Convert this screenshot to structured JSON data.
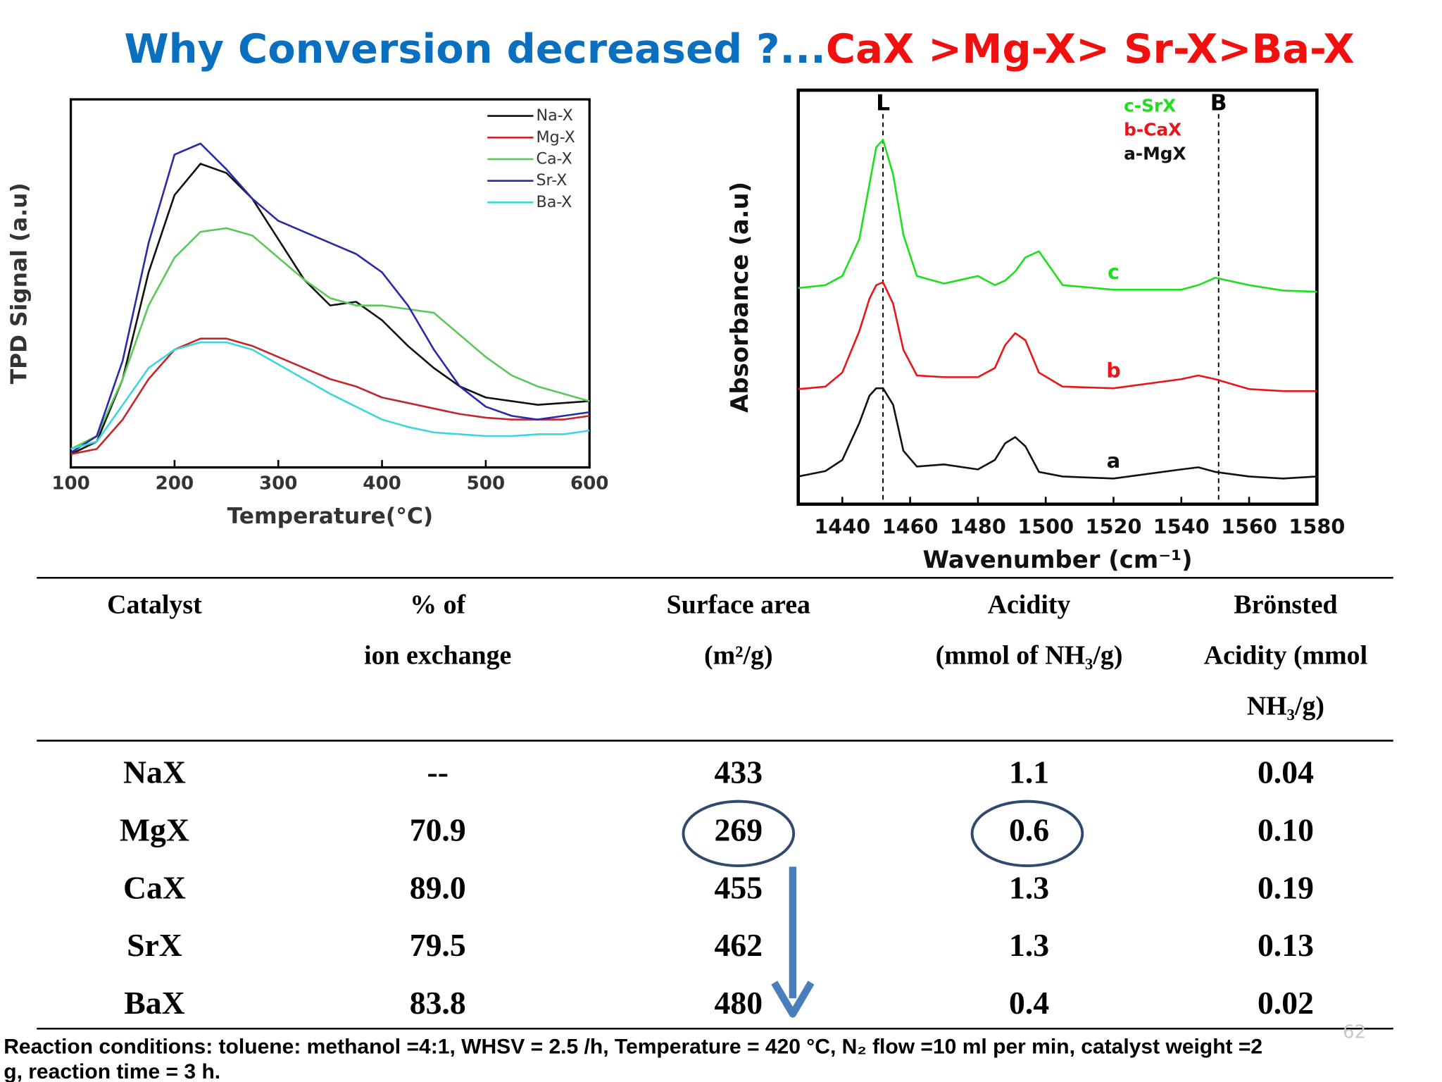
{
  "title": {
    "parts": [
      {
        "text": "Why Conversion decreased ?...",
        "color": "#0b6fbf"
      },
      {
        "text": "CaX >Mg-X> Sr-X>Ba-X",
        "color": "#f01010"
      }
    ]
  },
  "chart_data": [
    {
      "type": "line",
      "xlabel": "Temperature(°C)",
      "ylabel": "TPD Signal (a.u)",
      "xlim": [
        100,
        600
      ],
      "xticks": [
        100,
        200,
        300,
        400,
        500,
        600
      ],
      "ylim": [
        0,
        100
      ],
      "legend": "upper right",
      "legend_marker": true,
      "x": [
        100,
        125,
        150,
        175,
        200,
        225,
        250,
        275,
        300,
        325,
        350,
        375,
        400,
        425,
        450,
        475,
        500,
        525,
        550,
        575,
        600
      ],
      "series": [
        {
          "name": "Na-X",
          "color": "#111111",
          "values": [
            3.6,
            7,
            24,
            53,
            74,
            82.5,
            80,
            73,
            62,
            51,
            44,
            45,
            40,
            33,
            27,
            22,
            19,
            18,
            17,
            17.5,
            18
          ]
        },
        {
          "name": "Mg-X",
          "color": "#c0282d",
          "values": [
            3.6,
            5,
            13,
            24,
            32,
            35,
            35,
            33,
            30,
            27,
            24,
            22,
            19,
            17.5,
            16,
            14.5,
            13.5,
            13,
            13,
            13,
            14
          ]
        },
        {
          "name": "Ca-X",
          "color": "#5cc85a",
          "values": [
            5,
            8.5,
            24,
            44,
            57,
            64,
            65,
            63,
            57,
            51,
            46,
            44,
            44,
            43,
            42,
            36,
            30,
            25,
            22,
            20,
            18
          ]
        },
        {
          "name": "Sr-X",
          "color": "#2a2aa8",
          "values": [
            4,
            8.5,
            29,
            61,
            85,
            88,
            81,
            73,
            67,
            64,
            61,
            58,
            53,
            44,
            32,
            22,
            16.5,
            14,
            13,
            14,
            15
          ]
        },
        {
          "name": "Ba-X",
          "color": "#3dd6dc",
          "values": [
            5,
            7,
            17,
            27,
            32,
            34,
            34,
            32,
            28,
            24,
            20,
            16.5,
            13,
            11,
            9.5,
            9,
            8.5,
            8.5,
            9,
            9,
            10
          ]
        }
      ]
    },
    {
      "type": "line",
      "xlabel": "Wavenumber (cm⁻¹)",
      "ylabel": "Absorbance (a.u)",
      "xlim": [
        1427,
        1580
      ],
      "xticks": [
        1440,
        1460,
        1480,
        1500,
        1520,
        1540,
        1560,
        1580
      ],
      "ylim": [
        0,
        100
      ],
      "legend": "upper right",
      "legend_marker": false,
      "annotations": [
        {
          "text": "L",
          "x": 1452
        },
        {
          "text": "B",
          "x": 1551
        }
      ],
      "x": [
        1427,
        1435,
        1440,
        1445,
        1448,
        1450,
        1452,
        1455,
        1458,
        1462,
        1470,
        1480,
        1485,
        1488,
        1491,
        1494,
        1498,
        1505,
        1520,
        1540,
        1545,
        1550,
        1560,
        1570,
        1580
      ],
      "series": [
        {
          "name": "a-MgX",
          "label": "a",
          "color": "#111111",
          "values": [
            6.7,
            8,
            10.7,
            19.6,
            26.2,
            28,
            28,
            24,
            12.9,
            9.1,
            9.6,
            8.4,
            10.7,
            14.7,
            16.2,
            14,
            7.8,
            6.7,
            6.2,
            8.4,
            8.9,
            7.8,
            6.7,
            6.2,
            6.7
          ]
        },
        {
          "name": "b-CaX",
          "label": "b",
          "color": "#e8161b",
          "values": [
            27.8,
            28.4,
            31.8,
            41.8,
            49.6,
            52.9,
            53.6,
            48.4,
            37.3,
            31.1,
            30.7,
            30.7,
            32.9,
            38.4,
            41.3,
            39.6,
            31.8,
            28.4,
            28,
            30.2,
            31.1,
            30.2,
            27.8,
            27.3,
            27.3
          ]
        },
        {
          "name": "c-SrX",
          "label": "c",
          "color": "#1de01d",
          "values": [
            52.2,
            52.9,
            55.1,
            64,
            77.3,
            86.2,
            88,
            79.6,
            65.1,
            55.1,
            53.3,
            55.1,
            52.9,
            54,
            56.2,
            59.6,
            61.1,
            52.9,
            51.8,
            51.8,
            52.9,
            54.7,
            52.9,
            51.6,
            51.3
          ]
        }
      ]
    }
  ],
  "table": {
    "header": [
      [
        "Catalyst"
      ],
      [
        "% of",
        "ion exchange"
      ],
      [
        "Surface area",
        "(m²/g)"
      ],
      [
        "Acidity",
        "(mmol of NH₃/g)"
      ],
      [
        "Brönsted",
        "Acidity (mmol",
        "NH₃/g)"
      ]
    ],
    "rows": [
      [
        "NaX",
        "--",
        "433",
        "1.1",
        "0.04"
      ],
      [
        "MgX",
        "70.9",
        "269",
        "0.6",
        "0.10"
      ],
      [
        "CaX",
        "89.0",
        "455",
        "1.3",
        "0.19"
      ],
      [
        "SrX",
        "79.5",
        "462",
        "1.3",
        "0.13"
      ],
      [
        "BaX",
        "83.8",
        "480",
        "0.4",
        "0.02"
      ]
    ]
  },
  "footnote": [
    "Reaction conditions: toluene: methanol =4:1, WHSV = 2.5 /h, Temperature = 420 °C, N₂ flow =10 ml per min, catalyst weight =2",
    "g, reaction time = 3 h."
  ],
  "slide_number": "62"
}
